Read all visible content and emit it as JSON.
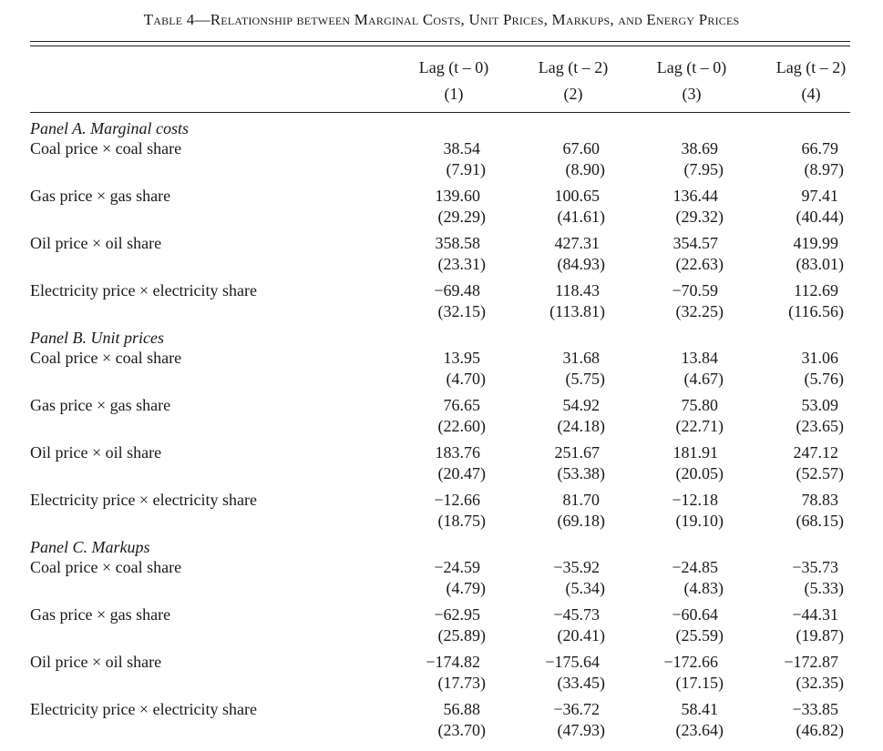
{
  "title": "Table 4—Relationship between Marginal Costs, Unit Prices, Markups, and Energy Prices",
  "columns": [
    {
      "lag": "Lag (t – 0)",
      "num": "(1)"
    },
    {
      "lag": "Lag (t – 2)",
      "num": "(2)"
    },
    {
      "lag": "Lag (t – 0)",
      "num": "(3)"
    },
    {
      "lag": "Lag (t – 2)",
      "num": "(4)"
    }
  ],
  "panels": [
    {
      "name": "Panel A. Marginal costs",
      "rows": [
        {
          "label": "Coal price × coal share",
          "coef": [
            "38.54",
            "67.60",
            "38.69",
            "66.79"
          ],
          "se": [
            "(7.91)",
            "(8.90)",
            "(7.95)",
            "(8.97)"
          ]
        },
        {
          "label": "Gas price × gas share",
          "coef": [
            "139.60",
            "100.65",
            "136.44",
            "97.41"
          ],
          "se": [
            "(29.29)",
            "(41.61)",
            "(29.32)",
            "(40.44)"
          ]
        },
        {
          "label": "Oil price × oil share",
          "coef": [
            "358.58",
            "427.31",
            "354.57",
            "419.99"
          ],
          "se": [
            "(23.31)",
            "(84.93)",
            "(22.63)",
            "(83.01)"
          ]
        },
        {
          "label": "Electricity price × electricity share",
          "coef": [
            "−69.48",
            "118.43",
            "−70.59",
            "112.69"
          ],
          "se": [
            "(32.15)",
            "(113.81)",
            "(32.25)",
            "(116.56)"
          ]
        }
      ]
    },
    {
      "name": "Panel B. Unit prices",
      "rows": [
        {
          "label": "Coal price × coal share",
          "coef": [
            "13.95",
            "31.68",
            "13.84",
            "31.06"
          ],
          "se": [
            "(4.70)",
            "(5.75)",
            "(4.67)",
            "(5.76)"
          ]
        },
        {
          "label": "Gas price × gas share",
          "coef": [
            "76.65",
            "54.92",
            "75.80",
            "53.09"
          ],
          "se": [
            "(22.60)",
            "(24.18)",
            "(22.71)",
            "(23.65)"
          ]
        },
        {
          "label": "Oil price × oil share",
          "coef": [
            "183.76",
            "251.67",
            "181.91",
            "247.12"
          ],
          "se": [
            "(20.47)",
            "(53.38)",
            "(20.05)",
            "(52.57)"
          ]
        },
        {
          "label": "Electricity price × electricity share",
          "coef": [
            "−12.66",
            "81.70",
            "−12.18",
            "78.83"
          ],
          "se": [
            "(18.75)",
            "(69.18)",
            "(19.10)",
            "(68.15)"
          ]
        }
      ]
    },
    {
      "name": "Panel C. Markups",
      "rows": [
        {
          "label": "Coal price × coal share",
          "coef": [
            "−24.59",
            "−35.92",
            "−24.85",
            "−35.73"
          ],
          "se": [
            "(4.79)",
            "(5.34)",
            "(4.83)",
            "(5.33)"
          ]
        },
        {
          "label": "Gas price × gas share",
          "coef": [
            "−62.95",
            "−45.73",
            "−60.64",
            "−44.31"
          ],
          "se": [
            "(25.89)",
            "(20.41)",
            "(25.59)",
            "(19.87)"
          ]
        },
        {
          "label": "Oil price × oil share",
          "coef": [
            "−174.82",
            "−175.64",
            "−172.66",
            "−172.87"
          ],
          "se": [
            "(17.73)",
            "(33.45)",
            "(17.15)",
            "(32.35)"
          ]
        },
        {
          "label": "Electricity price × electricity share",
          "coef": [
            "56.88",
            "−36.72",
            "58.41",
            "−33.85"
          ],
          "se": [
            "(23.70)",
            "(47.93)",
            "(23.64)",
            "(46.82)"
          ]
        }
      ]
    }
  ]
}
